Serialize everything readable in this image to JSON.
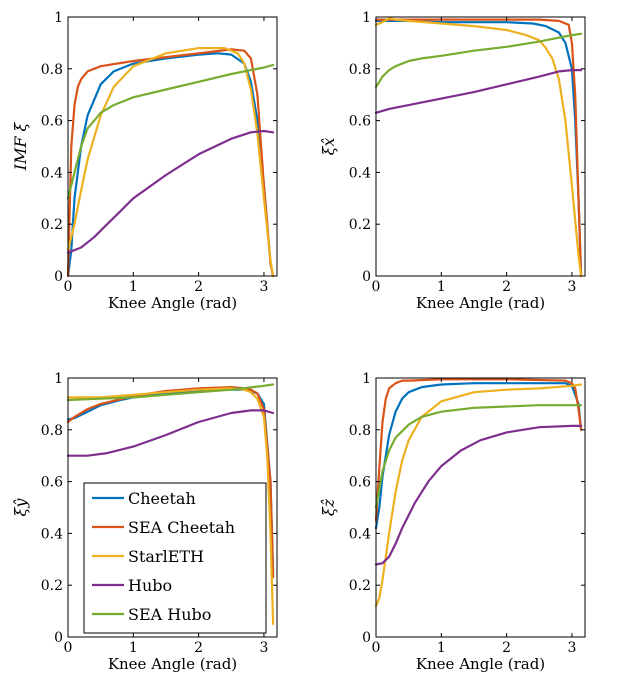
{
  "chart_data": [
    {
      "type": "line",
      "xlabel": "Knee Angle (rad)",
      "ylabel": "IMF ξ",
      "xlim": [
        0,
        3.2
      ],
      "ylim": [
        0,
        1
      ],
      "xticks": [
        "0",
        "1",
        "2",
        "3"
      ],
      "yticks": [
        "0",
        "0.2",
        "0.4",
        "0.6",
        "0.8",
        "1"
      ],
      "grid": false,
      "series": [
        {
          "name": "Cheetah",
          "color": "#0072BD",
          "x": [
            0,
            0.05,
            0.1,
            0.2,
            0.3,
            0.5,
            0.7,
            1.0,
            1.5,
            2.0,
            2.3,
            2.5,
            2.7,
            2.8,
            2.9,
            3.0,
            3.1,
            3.14
          ],
          "y": [
            0.0,
            0.1,
            0.3,
            0.5,
            0.62,
            0.74,
            0.79,
            0.82,
            0.84,
            0.855,
            0.86,
            0.855,
            0.82,
            0.75,
            0.6,
            0.35,
            0.05,
            0.0
          ]
        },
        {
          "name": "SEA Cheetah",
          "color": "#D95319",
          "x": [
            0,
            0.05,
            0.1,
            0.15,
            0.2,
            0.3,
            0.5,
            1.0,
            1.5,
            2.0,
            2.5,
            2.7,
            2.8,
            2.9,
            3.0,
            3.1,
            3.14
          ],
          "y": [
            0.0,
            0.5,
            0.66,
            0.73,
            0.76,
            0.79,
            0.81,
            0.83,
            0.845,
            0.86,
            0.875,
            0.87,
            0.84,
            0.7,
            0.35,
            0.05,
            0.0
          ]
        },
        {
          "name": "StarlETH",
          "color": "#EDB120",
          "x": [
            0,
            0.1,
            0.2,
            0.3,
            0.5,
            0.7,
            1.0,
            1.5,
            2.0,
            2.4,
            2.6,
            2.7,
            2.8,
            2.9,
            3.0,
            3.1,
            3.14
          ],
          "y": [
            0.1,
            0.2,
            0.33,
            0.45,
            0.62,
            0.73,
            0.81,
            0.86,
            0.88,
            0.88,
            0.86,
            0.82,
            0.72,
            0.55,
            0.3,
            0.06,
            0.0
          ]
        },
        {
          "name": "Hubo",
          "color": "#7E2F8E",
          "x": [
            0,
            0.2,
            0.4,
            0.6,
            0.8,
            1.0,
            1.5,
            2.0,
            2.5,
            2.8,
            3.0,
            3.14
          ],
          "y": [
            0.09,
            0.11,
            0.15,
            0.2,
            0.25,
            0.3,
            0.39,
            0.47,
            0.53,
            0.555,
            0.56,
            0.555
          ]
        },
        {
          "name": "SEA Hubo",
          "color": "#77AC30",
          "x": [
            0,
            0.1,
            0.2,
            0.3,
            0.5,
            0.7,
            1.0,
            1.5,
            2.0,
            2.5,
            3.0,
            3.14
          ],
          "y": [
            0.3,
            0.4,
            0.5,
            0.57,
            0.63,
            0.66,
            0.69,
            0.72,
            0.75,
            0.78,
            0.805,
            0.815
          ]
        }
      ]
    },
    {
      "type": "line",
      "xlabel": "Knee Angle (rad)",
      "ylabel": "ξx̂",
      "xlim": [
        0,
        3.2
      ],
      "ylim": [
        0,
        1
      ],
      "xticks": [
        "0",
        "1",
        "2",
        "3"
      ],
      "yticks": [
        "0",
        "0.2",
        "0.4",
        "0.6",
        "0.8",
        "1"
      ],
      "grid": false,
      "series": [
        {
          "name": "Cheetah",
          "color": "#0072BD",
          "x": [
            0,
            0.5,
            1.0,
            1.5,
            2.0,
            2.4,
            2.6,
            2.8,
            2.9,
            3.0,
            3.05,
            3.1,
            3.14
          ],
          "y": [
            0.985,
            0.985,
            0.98,
            0.98,
            0.98,
            0.975,
            0.965,
            0.94,
            0.9,
            0.8,
            0.6,
            0.3,
            0.0
          ]
        },
        {
          "name": "SEA Cheetah",
          "color": "#D95319",
          "x": [
            0,
            0.5,
            1.0,
            1.5,
            2.0,
            2.5,
            2.8,
            2.95,
            3.0,
            3.05,
            3.1,
            3.14
          ],
          "y": [
            0.99,
            0.99,
            0.99,
            0.99,
            0.99,
            0.99,
            0.985,
            0.97,
            0.9,
            0.7,
            0.3,
            0.0
          ]
        },
        {
          "name": "StarlETH",
          "color": "#EDB120",
          "x": [
            0,
            0.1,
            0.2,
            0.3,
            0.5,
            1.0,
            1.5,
            2.0,
            2.3,
            2.5,
            2.6,
            2.7,
            2.8,
            2.9,
            3.0,
            3.1,
            3.14
          ],
          "y": [
            0.97,
            0.98,
            0.995,
            0.99,
            0.985,
            0.975,
            0.965,
            0.95,
            0.93,
            0.91,
            0.88,
            0.84,
            0.76,
            0.6,
            0.35,
            0.08,
            0.0
          ]
        },
        {
          "name": "Hubo",
          "color": "#7E2F8E",
          "x": [
            0,
            0.2,
            0.5,
            1.0,
            1.5,
            2.0,
            2.5,
            2.8,
            3.0,
            3.14
          ],
          "y": [
            0.63,
            0.645,
            0.66,
            0.685,
            0.71,
            0.74,
            0.77,
            0.79,
            0.795,
            0.795
          ]
        },
        {
          "name": "SEA Hubo",
          "color": "#77AC30",
          "x": [
            0,
            0.05,
            0.1,
            0.2,
            0.3,
            0.5,
            0.7,
            1.0,
            1.5,
            2.0,
            2.5,
            3.0,
            3.14
          ],
          "y": [
            0.73,
            0.75,
            0.77,
            0.795,
            0.81,
            0.83,
            0.84,
            0.85,
            0.87,
            0.885,
            0.905,
            0.93,
            0.935
          ]
        }
      ]
    },
    {
      "type": "line",
      "xlabel": "Knee Angle (rad)",
      "ylabel": "ξŷ",
      "xlim": [
        0,
        3.2
      ],
      "ylim": [
        0,
        1
      ],
      "xticks": [
        "0",
        "1",
        "2",
        "3"
      ],
      "yticks": [
        "0",
        "0.2",
        "0.4",
        "0.6",
        "0.8",
        "1"
      ],
      "grid": false,
      "legend": "lower-left",
      "series": [
        {
          "name": "Cheetah",
          "color": "#0072BD",
          "x": [
            0,
            0.1,
            0.3,
            0.5,
            0.8,
            1.0,
            1.5,
            2.0,
            2.5,
            2.7,
            2.8,
            2.9,
            3.0,
            3.1,
            3.14
          ],
          "y": [
            0.84,
            0.845,
            0.87,
            0.895,
            0.915,
            0.925,
            0.94,
            0.95,
            0.955,
            0.955,
            0.95,
            0.94,
            0.9,
            0.6,
            0.25
          ]
        },
        {
          "name": "SEA Cheetah",
          "color": "#D95319",
          "x": [
            0,
            0.1,
            0.3,
            0.5,
            1.0,
            1.5,
            2.0,
            2.5,
            2.7,
            2.8,
            2.9,
            3.0,
            3.1,
            3.14
          ],
          "y": [
            0.83,
            0.85,
            0.88,
            0.9,
            0.93,
            0.95,
            0.96,
            0.965,
            0.96,
            0.955,
            0.94,
            0.88,
            0.6,
            0.23
          ]
        },
        {
          "name": "StarlETH",
          "color": "#EDB120",
          "x": [
            0,
            0.5,
            1.0,
            1.5,
            2.0,
            2.5,
            2.7,
            2.8,
            2.9,
            3.0,
            3.05,
            3.1,
            3.14
          ],
          "y": [
            0.925,
            0.925,
            0.935,
            0.945,
            0.955,
            0.96,
            0.955,
            0.945,
            0.92,
            0.85,
            0.7,
            0.4,
            0.05
          ]
        },
        {
          "name": "Hubo",
          "color": "#7E2F8E",
          "x": [
            0,
            0.3,
            0.6,
            1.0,
            1.5,
            2.0,
            2.5,
            2.8,
            3.0,
            3.14
          ],
          "y": [
            0.7,
            0.7,
            0.71,
            0.735,
            0.78,
            0.83,
            0.865,
            0.875,
            0.875,
            0.865
          ]
        },
        {
          "name": "SEA Hubo",
          "color": "#77AC30",
          "x": [
            0,
            0.5,
            1.0,
            1.5,
            2.0,
            2.5,
            3.0,
            3.14
          ],
          "y": [
            0.915,
            0.92,
            0.925,
            0.935,
            0.945,
            0.955,
            0.97,
            0.975
          ]
        }
      ]
    },
    {
      "type": "line",
      "xlabel": "Knee Angle (rad)",
      "ylabel": "ξẑ",
      "xlim": [
        0,
        3.2
      ],
      "ylim": [
        0,
        1
      ],
      "xticks": [
        "0",
        "1",
        "2",
        "3"
      ],
      "yticks": [
        "0",
        "0.2",
        "0.4",
        "0.6",
        "0.8",
        "1"
      ],
      "grid": false,
      "series": [
        {
          "name": "Cheetah",
          "color": "#0072BD",
          "x": [
            0,
            0.05,
            0.1,
            0.2,
            0.3,
            0.4,
            0.5,
            0.7,
            1.0,
            1.5,
            2.0,
            2.5,
            2.9,
            3.0,
            3.1,
            3.14
          ],
          "y": [
            0.42,
            0.5,
            0.62,
            0.78,
            0.87,
            0.92,
            0.945,
            0.965,
            0.975,
            0.98,
            0.98,
            0.98,
            0.98,
            0.97,
            0.9,
            0.8
          ]
        },
        {
          "name": "SEA Cheetah",
          "color": "#D95319",
          "x": [
            0,
            0.05,
            0.1,
            0.15,
            0.2,
            0.3,
            0.4,
            0.5,
            1.0,
            2.0,
            2.9,
            3.0,
            3.05,
            3.1,
            3.14
          ],
          "y": [
            0.45,
            0.65,
            0.83,
            0.92,
            0.96,
            0.98,
            0.99,
            0.99,
            0.995,
            0.995,
            0.99,
            0.98,
            0.96,
            0.88,
            0.8
          ]
        },
        {
          "name": "StarlETH",
          "color": "#EDB120",
          "x": [
            0,
            0.05,
            0.1,
            0.2,
            0.3,
            0.4,
            0.5,
            0.7,
            1.0,
            1.5,
            2.0,
            2.5,
            3.0,
            3.14
          ],
          "y": [
            0.12,
            0.15,
            0.22,
            0.4,
            0.56,
            0.68,
            0.76,
            0.85,
            0.91,
            0.945,
            0.955,
            0.96,
            0.97,
            0.975
          ]
        },
        {
          "name": "Hubo",
          "color": "#7E2F8E",
          "x": [
            0,
            0.1,
            0.2,
            0.3,
            0.4,
            0.6,
            0.8,
            1.0,
            1.3,
            1.6,
            2.0,
            2.5,
            3.0,
            3.14
          ],
          "y": [
            0.28,
            0.285,
            0.31,
            0.36,
            0.42,
            0.52,
            0.6,
            0.66,
            0.72,
            0.76,
            0.79,
            0.81,
            0.815,
            0.815
          ]
        },
        {
          "name": "SEA Hubo",
          "color": "#77AC30",
          "x": [
            0,
            0.05,
            0.1,
            0.2,
            0.3,
            0.5,
            0.7,
            1.0,
            1.5,
            2.0,
            2.5,
            3.0,
            3.14
          ],
          "y": [
            0.5,
            0.57,
            0.64,
            0.72,
            0.77,
            0.82,
            0.85,
            0.87,
            0.885,
            0.89,
            0.895,
            0.895,
            0.895
          ]
        }
      ]
    }
  ],
  "legend": {
    "items": [
      "Cheetah",
      "SEA Cheetah",
      "StarlETH",
      "Hubo",
      "SEA Hubo"
    ],
    "colors": [
      "#0072BD",
      "#D95319",
      "#EDB120",
      "#7E2F8E",
      "#77AC30"
    ]
  }
}
